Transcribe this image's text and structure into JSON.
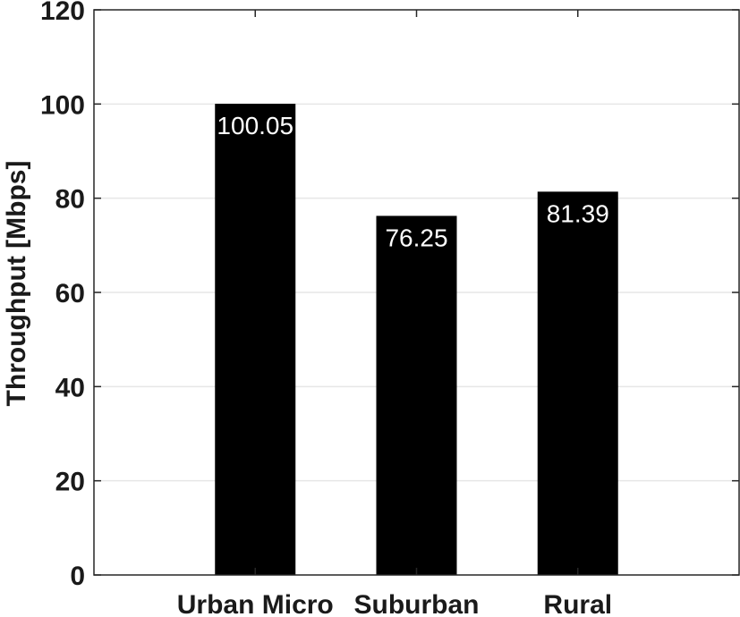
{
  "chart_data": {
    "type": "bar",
    "categories": [
      "Urban Micro",
      "Suburban",
      "Rural"
    ],
    "values": [
      100.05,
      76.25,
      81.39
    ],
    "data_labels": [
      "100.05",
      "76.25",
      "81.39"
    ],
    "title": "",
    "xlabel": "",
    "ylabel": "Throughput [Mbps]",
    "ylim": [
      0,
      120
    ],
    "yticks": [
      0,
      20,
      40,
      60,
      80,
      100,
      120
    ],
    "xlim": [
      0,
      4
    ],
    "grid": true,
    "colors": {
      "bar": "#000000",
      "data_label": "#ffffff",
      "grid": "#e6e6e6",
      "axis": "#262626"
    }
  }
}
